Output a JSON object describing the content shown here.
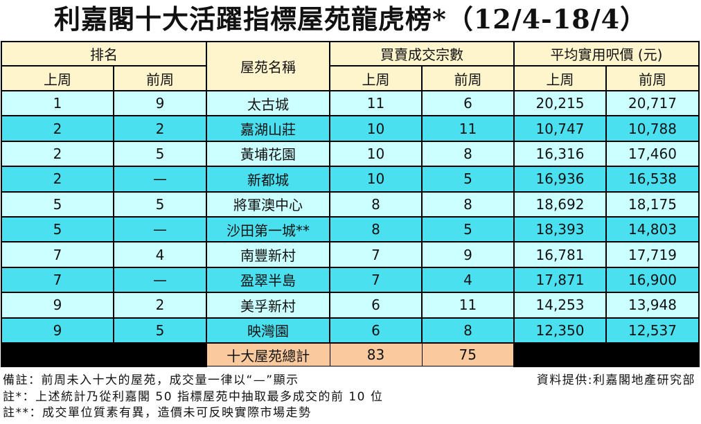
{
  "title": "利嘉閣十大活躍指標屋苑龍虎榜*（12/4-18/4）",
  "headers": {
    "rank": "排名",
    "estate": "屋苑名稱",
    "transactions": "買賣成交宗數",
    "price": "平均實用呎價 (元)",
    "last_week": "上周",
    "prev_week": "前周"
  },
  "rows": [
    {
      "rank_last": "1",
      "rank_prev": "9",
      "estate": "太古城",
      "tx_last": "11",
      "tx_prev": "6",
      "price_last": "20,215",
      "price_prev": "20,717"
    },
    {
      "rank_last": "2",
      "rank_prev": "2",
      "estate": "嘉湖山莊",
      "tx_last": "10",
      "tx_prev": "11",
      "price_last": "10,747",
      "price_prev": "10,788"
    },
    {
      "rank_last": "2",
      "rank_prev": "5",
      "estate": "黃埔花園",
      "tx_last": "10",
      "tx_prev": "8",
      "price_last": "16,316",
      "price_prev": "17,460"
    },
    {
      "rank_last": "2",
      "rank_prev": "—",
      "estate": "新都城",
      "tx_last": "10",
      "tx_prev": "5",
      "price_last": "16,936",
      "price_prev": "16,538"
    },
    {
      "rank_last": "5",
      "rank_prev": "5",
      "estate": "將軍澳中心",
      "tx_last": "8",
      "tx_prev": "8",
      "price_last": "18,692",
      "price_prev": "18,175"
    },
    {
      "rank_last": "5",
      "rank_prev": "—",
      "estate": "沙田第一城**",
      "tx_last": "8",
      "tx_prev": "5",
      "price_last": "18,393",
      "price_prev": "14,803"
    },
    {
      "rank_last": "7",
      "rank_prev": "4",
      "estate": "南豐新村",
      "tx_last": "7",
      "tx_prev": "9",
      "price_last": "16,781",
      "price_prev": "17,719"
    },
    {
      "rank_last": "7",
      "rank_prev": "—",
      "estate": "盈翠半島",
      "tx_last": "7",
      "tx_prev": "4",
      "price_last": "17,871",
      "price_prev": "16,900"
    },
    {
      "rank_last": "9",
      "rank_prev": "2",
      "estate": "美孚新村",
      "tx_last": "6",
      "tx_prev": "11",
      "price_last": "14,253",
      "price_prev": "13,948"
    },
    {
      "rank_last": "9",
      "rank_prev": "5",
      "estate": "映灣園",
      "tx_last": "6",
      "tx_prev": "8",
      "price_last": "12,350",
      "price_prev": "12,537"
    }
  ],
  "total": {
    "label": "十大屋苑總計",
    "tx_last": "83",
    "tx_prev": "75"
  },
  "notes": [
    "備註：前周未入十大的屋苑，成交量一律以“—”顯示",
    "註*：上述統計乃從利嘉閣 50 指標屋苑中抽取最多成交的前 10 位",
    "註**：成交單位質素有異，造價未可反映實際市場走勢"
  ],
  "source": "資料提供:利嘉閣地產研究部",
  "colors": {
    "header": "#fff5cc",
    "row_light": "#ccffff",
    "row_dark": "#4ae0f0",
    "total": "#fac99e"
  }
}
